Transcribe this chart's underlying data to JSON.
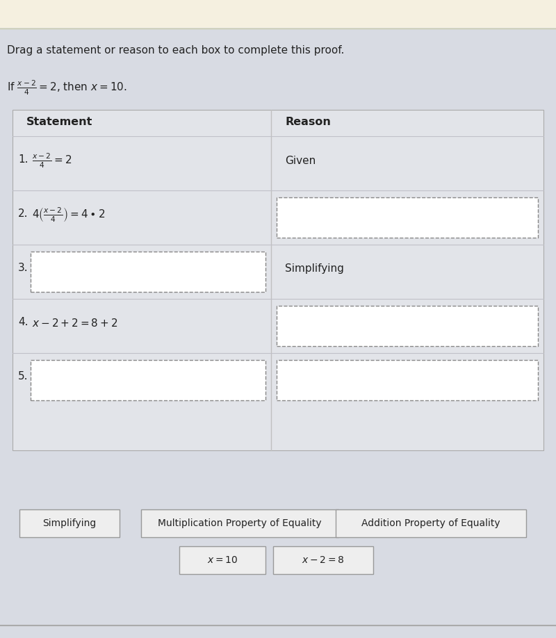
{
  "title": "Drag a statement or reason to each box to complete this proof.",
  "col_statement": "Statement",
  "col_reason": "Reason",
  "rows": [
    {
      "num": "1.",
      "statement": "$\\frac{x-2}{4} = 2$",
      "reason": "Given",
      "stmt_box": false,
      "rsn_box": false
    },
    {
      "num": "2.",
      "statement": "$4\\left(\\frac{x-2}{4}\\right) = 4\\bullet 2$",
      "reason": "",
      "stmt_box": false,
      "rsn_box": true
    },
    {
      "num": "3.",
      "statement": "",
      "reason": "Simplifying",
      "stmt_box": true,
      "rsn_box": false
    },
    {
      "num": "4.",
      "statement": "$x - 2 + 2 = 8 + 2$",
      "reason": "",
      "stmt_box": false,
      "rsn_box": true
    },
    {
      "num": "5.",
      "statement": "",
      "reason": "",
      "stmt_box": true,
      "rsn_box": true
    }
  ],
  "drag_items": [
    "Simplifying",
    "Multiplication Property of Equality",
    "Addition Property of Equality"
  ],
  "drag_items2": [
    "$x = 10$",
    "$x - 2 = 8$"
  ],
  "top_bar_color": "#f5f0e0",
  "bg_color": "#d8dbe3",
  "table_bg": "#e2e4e9",
  "white": "#ffffff",
  "dash_color": "#888888",
  "text_color": "#222222",
  "divider_color": "#c0c0c8",
  "drag_bg": "#eeeeee",
  "drag_border": "#999999",
  "bottom_line_color": "#aaaaaa"
}
